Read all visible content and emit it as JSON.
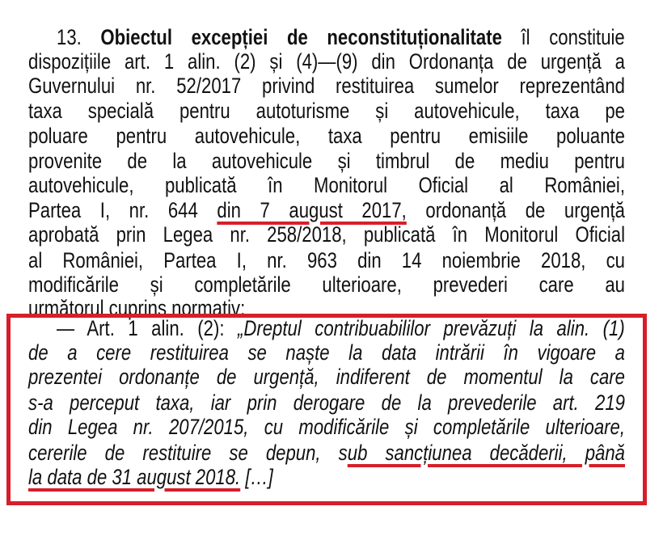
{
  "accent_color": "#d61f2b",
  "paragraph": {
    "lines": [
      [
        {
          "t": "13. "
        },
        {
          "t": "Obiectul excepției de neconstituționalitate",
          "b": true
        },
        {
          "t": " îl constituie"
        }
      ],
      [
        {
          "t": "dispozițiile art. 1 alin. (2) și (4)—(9) din Ordonanța de urgență a"
        }
      ],
      [
        {
          "t": "Guvernului nr. 52/2017 privind restituirea sumelor reprezentând"
        }
      ],
      [
        {
          "t": "taxa specială pentru autoturisme și autovehicule, taxa pe"
        }
      ],
      [
        {
          "t": "poluare pentru autovehicule, taxa pentru emisiile poluante"
        }
      ],
      [
        {
          "t": "provenite de la autovehicule și timbrul de mediu pentru"
        }
      ],
      [
        {
          "t": "autovehicule, publicată în Monitorul Oficial al României,"
        }
      ],
      [
        {
          "t": "Partea I, nr. 644 "
        },
        {
          "t": "din 7 august 2017,",
          "u": true
        },
        {
          "t": " ordonanță de urgență"
        }
      ],
      [
        {
          "t": "aprobată prin Legea nr. 258/2018, publicată în Monitorul Oficial"
        }
      ],
      [
        {
          "t": "al României, Partea I, nr. 963 din 14 noiembrie 2018, cu"
        }
      ],
      [
        {
          "t": "modificările și completările ulterioare, prevederi care au"
        }
      ],
      [
        {
          "t": "următorul cuprins normativ:"
        }
      ]
    ]
  },
  "quote": {
    "lines": [
      [
        {
          "t": "— Art. 1 alin. (2): "
        },
        {
          "t": "„Dreptul contribuabililor prevăzuți la alin. (1)",
          "i": true
        }
      ],
      [
        {
          "t": "de a cere restituirea se naște la data intrării în vigoare a",
          "i": true
        }
      ],
      [
        {
          "t": "prezentei ordonanțe de urgență, indiferent de momentul la care",
          "i": true
        }
      ],
      [
        {
          "t": "s-a perceput taxa, iar prin derogare de la prevederile art. 219",
          "i": true
        }
      ],
      [
        {
          "t": "din Legea nr. 207/2015, cu modificările și completările ulterioare,",
          "i": true
        }
      ],
      [
        {
          "t": "cererile de restituire se depun, s",
          "i": true
        },
        {
          "t": "ub sancțiunea decăderii, până",
          "i": true,
          "u": true
        }
      ],
      [
        {
          "t": "la data de 31 august 2018.",
          "i": true,
          "u": true
        },
        {
          "t": " […]",
          "i": true
        }
      ]
    ]
  }
}
